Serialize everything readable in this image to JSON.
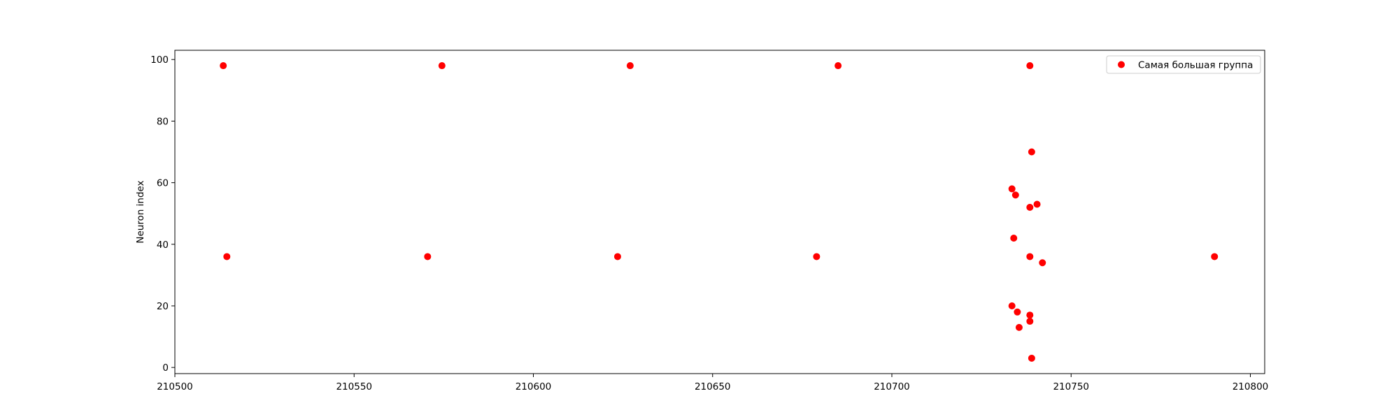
{
  "chart_data": {
    "type": "scatter",
    "title": "",
    "xlabel": "",
    "ylabel": "Neuron index",
    "xlim": [
      210500,
      210804
    ],
    "ylim": [
      -2,
      103
    ],
    "xticks": [
      210500,
      210550,
      210600,
      210650,
      210700,
      210750,
      210800
    ],
    "yticks": [
      0,
      20,
      40,
      60,
      80,
      100
    ],
    "xtick_labels": [
      "210500",
      "210550",
      "210600",
      "210650",
      "210700",
      "210750",
      "210800"
    ],
    "ytick_labels": [
      "0",
      "20",
      "40",
      "60",
      "80",
      "100"
    ],
    "grid": false,
    "legend_position": "top-right",
    "series": [
      {
        "name": "Самая большая группа",
        "color": "#ff0000",
        "points": [
          {
            "x": 210513.5,
            "y": 98
          },
          {
            "x": 210574.5,
            "y": 98
          },
          {
            "x": 210627.0,
            "y": 98
          },
          {
            "x": 210685.0,
            "y": 98
          },
          {
            "x": 210738.5,
            "y": 98
          },
          {
            "x": 210514.5,
            "y": 36
          },
          {
            "x": 210570.5,
            "y": 36
          },
          {
            "x": 210623.5,
            "y": 36
          },
          {
            "x": 210679.0,
            "y": 36
          },
          {
            "x": 210738.5,
            "y": 36
          },
          {
            "x": 210790.0,
            "y": 36
          },
          {
            "x": 210739.0,
            "y": 70
          },
          {
            "x": 210733.5,
            "y": 58
          },
          {
            "x": 210734.5,
            "y": 56
          },
          {
            "x": 210738.5,
            "y": 52
          },
          {
            "x": 210740.5,
            "y": 53
          },
          {
            "x": 210734.0,
            "y": 42
          },
          {
            "x": 210742.0,
            "y": 34
          },
          {
            "x": 210733.5,
            "y": 20
          },
          {
            "x": 210735.0,
            "y": 18
          },
          {
            "x": 210738.5,
            "y": 17
          },
          {
            "x": 210738.5,
            "y": 15
          },
          {
            "x": 210735.5,
            "y": 13
          },
          {
            "x": 210739.0,
            "y": 3
          }
        ]
      }
    ]
  }
}
